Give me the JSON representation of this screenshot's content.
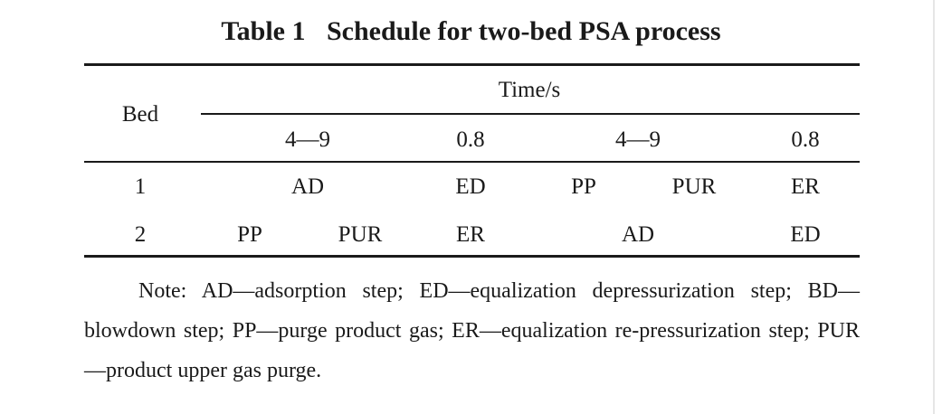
{
  "title": {
    "label": "Table 1",
    "caption": "Schedule for two-bed PSA process"
  },
  "table": {
    "bed_header": "Bed",
    "time_header": "Time/s",
    "time_columns": [
      "4—9",
      "0.8",
      "4—9",
      "0.8"
    ],
    "rows": [
      {
        "bed": "1",
        "steps": [
          "AD",
          "ED",
          "PP",
          "PUR",
          "ER"
        ]
      },
      {
        "bed": "2",
        "steps": [
          "PP",
          "PUR",
          "ER",
          "AD",
          "ED"
        ]
      }
    ]
  },
  "note": "Note: AD—adsorption step; ED—equalization depressurization step; BD—blowdown step; PP—purge product gas; ER—equalization re-pressurization step; PUR—product upper gas purge."
}
